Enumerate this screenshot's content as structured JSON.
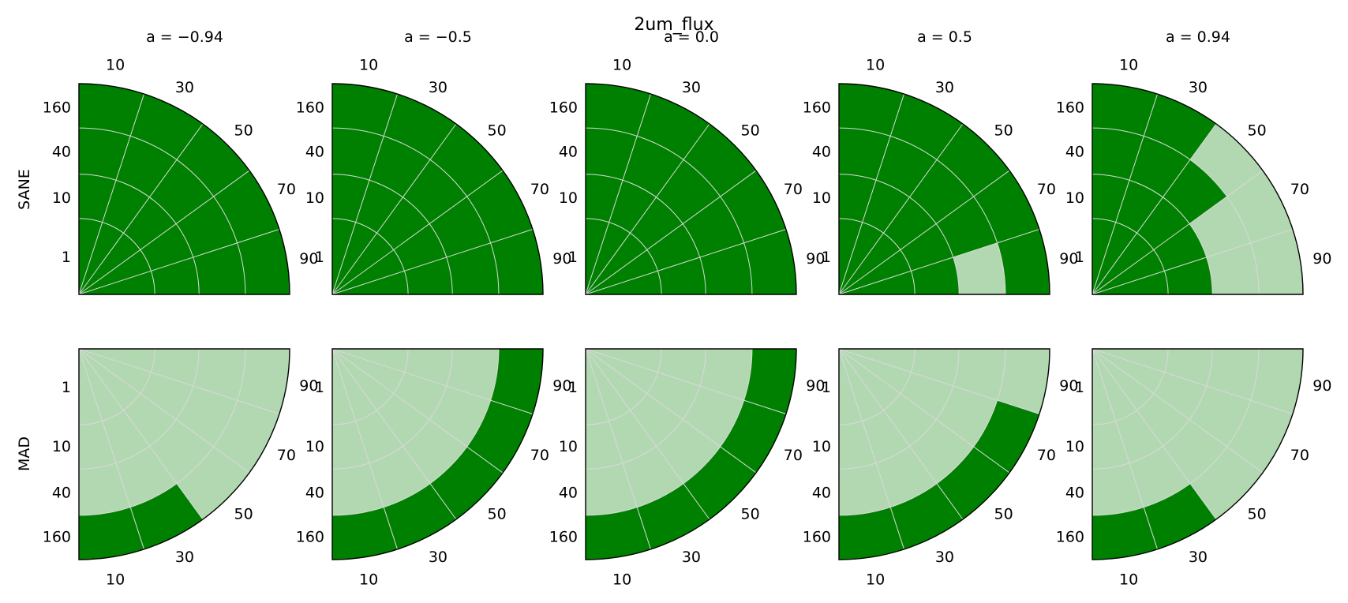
{
  "figure": {
    "title": "2um_flux",
    "column_titles": [
      "a = −0.94",
      "a = −0.5",
      "a = 0.0",
      "a = 0.5",
      "a = 0.94"
    ],
    "row_labels": [
      "SANE",
      "MAD"
    ],
    "colors": {
      "pass": "#008000",
      "fail": "#b2d8b2",
      "grid": "#d9d9d9",
      "edge": "#000000"
    }
  },
  "chart_data": {
    "type": "heatmap",
    "title": "2um_flux",
    "layout": "polar quadrant grid, 2 rows x 5 columns",
    "radial_ticks": [
      "1",
      "10",
      "40",
      "160"
    ],
    "angular_ticks": [
      "10",
      "30",
      "50",
      "70",
      "90"
    ],
    "value_legend": {
      "1": "pass (dark green)",
      "0": "fail (light green)"
    },
    "rows": [
      "SANE",
      "MAD"
    ],
    "columns": [
      "a = −0.94",
      "a = −0.5",
      "a = 0.0",
      "a = 0.5",
      "a = 0.94"
    ],
    "panels": [
      {
        "row": "SANE",
        "column": "a = −0.94",
        "cells": [
          [
            1,
            1,
            1,
            1,
            1
          ],
          [
            1,
            1,
            1,
            1,
            1
          ],
          [
            1,
            1,
            1,
            1,
            1
          ],
          [
            1,
            1,
            1,
            1,
            1
          ]
        ]
      },
      {
        "row": "SANE",
        "column": "a = −0.5",
        "cells": [
          [
            1,
            1,
            1,
            1,
            1
          ],
          [
            1,
            1,
            1,
            1,
            1
          ],
          [
            1,
            1,
            1,
            1,
            1
          ],
          [
            1,
            1,
            1,
            1,
            1
          ]
        ]
      },
      {
        "row": "SANE",
        "column": "a = 0.0",
        "cells": [
          [
            1,
            1,
            1,
            1,
            1
          ],
          [
            1,
            1,
            1,
            1,
            1
          ],
          [
            1,
            1,
            1,
            1,
            1
          ],
          [
            1,
            1,
            1,
            1,
            1
          ]
        ]
      },
      {
        "row": "SANE",
        "column": "a = 0.5",
        "cells": [
          [
            1,
            1,
            1,
            1,
            1
          ],
          [
            1,
            1,
            1,
            1,
            1
          ],
          [
            1,
            1,
            1,
            1,
            0
          ],
          [
            1,
            1,
            1,
            1,
            1
          ]
        ]
      },
      {
        "row": "SANE",
        "column": "a = 0.94",
        "cells": [
          [
            1,
            1,
            1,
            1,
            1
          ],
          [
            1,
            1,
            1,
            1,
            1
          ],
          [
            1,
            1,
            1,
            0,
            0
          ],
          [
            1,
            1,
            0,
            0,
            0
          ]
        ]
      },
      {
        "row": "MAD",
        "column": "a = −0.94",
        "cells": [
          [
            0,
            0,
            0,
            0,
            0
          ],
          [
            0,
            0,
            0,
            0,
            0
          ],
          [
            0,
            0,
            0,
            0,
            0
          ],
          [
            1,
            1,
            0,
            0,
            0
          ]
        ]
      },
      {
        "row": "MAD",
        "column": "a = −0.5",
        "cells": [
          [
            0,
            0,
            0,
            0,
            0
          ],
          [
            0,
            0,
            0,
            0,
            0
          ],
          [
            0,
            0,
            0,
            0,
            0
          ],
          [
            1,
            1,
            1,
            1,
            1
          ]
        ]
      },
      {
        "row": "MAD",
        "column": "a = 0.0",
        "cells": [
          [
            0,
            0,
            0,
            0,
            0
          ],
          [
            0,
            0,
            0,
            0,
            0
          ],
          [
            0,
            0,
            0,
            0,
            0
          ],
          [
            1,
            1,
            1,
            1,
            1
          ]
        ]
      },
      {
        "row": "MAD",
        "column": "a = 0.5",
        "cells": [
          [
            0,
            0,
            0,
            0,
            0
          ],
          [
            0,
            0,
            0,
            0,
            0
          ],
          [
            0,
            0,
            0,
            0,
            0
          ],
          [
            1,
            1,
            1,
            1,
            0
          ]
        ]
      },
      {
        "row": "MAD",
        "column": "a = 0.94",
        "cells": [
          [
            0,
            0,
            0,
            0,
            0
          ],
          [
            0,
            0,
            0,
            0,
            0
          ],
          [
            0,
            0,
            0,
            0,
            0
          ],
          [
            1,
            1,
            0,
            0,
            0
          ]
        ]
      }
    ]
  }
}
